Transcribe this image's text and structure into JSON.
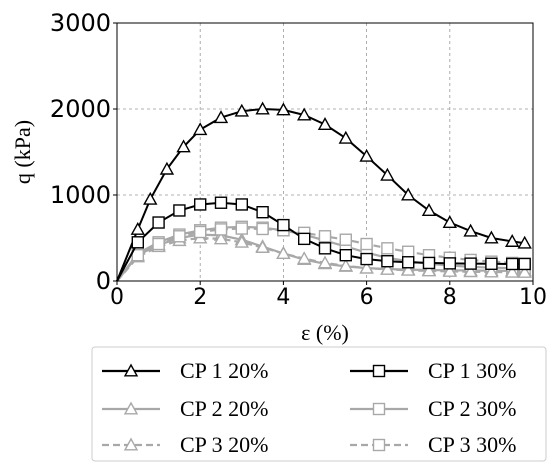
{
  "chart_data": {
    "type": "line",
    "xlabel": "ε (%)",
    "ylabel": "q (kPa)",
    "xlim": [
      0,
      10
    ],
    "ylim": [
      0,
      3000
    ],
    "xticks": [
      "0",
      "2",
      "4",
      "6",
      "8",
      "10"
    ],
    "yticks": [
      "0",
      "1000",
      "2000",
      "3000"
    ],
    "xtick_values": [
      0,
      2,
      4,
      6,
      8,
      10
    ],
    "ytick_values": [
      0,
      1000,
      2000,
      3000
    ],
    "grid": true,
    "legend_position": "bottom",
    "series": [
      {
        "name": "CP 1 20%",
        "color": "#000000",
        "marker": "triangle",
        "dash": "solid",
        "x": [
          0,
          0.5,
          0.8,
          1.2,
          1.6,
          2,
          2.5,
          3,
          3.5,
          4,
          4.5,
          5,
          5.5,
          6,
          6.5,
          7,
          7.5,
          8,
          8.5,
          9,
          9.5,
          9.8
        ],
        "y": [
          0,
          600,
          950,
          1300,
          1560,
          1760,
          1900,
          1975,
          2000,
          1990,
          1930,
          1820,
          1660,
          1450,
          1230,
          1000,
          820,
          680,
          580,
          500,
          460,
          440
        ]
      },
      {
        "name": "CP 1 30%",
        "color": "#000000",
        "marker": "square",
        "dash": "solid",
        "x": [
          0,
          0.5,
          1,
          1.5,
          2,
          2.5,
          3,
          3.5,
          4,
          4.5,
          5,
          5.5,
          6,
          6.5,
          7,
          7.5,
          8,
          8.5,
          9,
          9.5,
          9.8
        ],
        "y": [
          0,
          450,
          680,
          820,
          890,
          910,
          890,
          800,
          650,
          490,
          380,
          300,
          255,
          230,
          218,
          210,
          205,
          202,
          200,
          198,
          198
        ]
      },
      {
        "name": "CP 2 20%",
        "color": "#a8a8a8",
        "marker": "triangle",
        "dash": "solid",
        "x": [
          0,
          0.5,
          1,
          1.5,
          2,
          2.5,
          3,
          3.5,
          4,
          4.5,
          5,
          5.5,
          6,
          6.5,
          7,
          7.5,
          8,
          8.5,
          9,
          9.5,
          9.8
        ],
        "y": [
          0,
          300,
          420,
          500,
          540,
          530,
          480,
          400,
          320,
          250,
          200,
          170,
          150,
          140,
          132,
          128,
          125,
          122,
          120,
          118,
          118
        ]
      },
      {
        "name": "CP 2 30%",
        "color": "#a8a8a8",
        "marker": "square",
        "dash": "solid",
        "x": [
          0,
          0.5,
          1,
          1.5,
          2,
          2.5,
          3,
          3.5,
          4,
          4.5,
          5,
          5.5,
          6,
          6.5,
          7,
          7.5,
          8,
          8.5,
          9,
          9.5,
          9.8
        ],
        "y": [
          0,
          320,
          450,
          540,
          590,
          620,
          630,
          620,
          590,
          540,
          470,
          400,
          330,
          270,
          230,
          200,
          180,
          165,
          155,
          150,
          148
        ]
      },
      {
        "name": "CP 3 20%",
        "color": "#a8a8a8",
        "marker": "triangle",
        "dash": "dashed",
        "x": [
          0,
          0.5,
          1,
          1.5,
          2,
          2.5,
          3,
          3.5,
          4,
          4.5,
          5,
          5.5,
          6,
          6.5,
          7,
          7.5,
          8,
          8.5,
          9,
          9.5,
          9.8
        ],
        "y": [
          0,
          280,
          400,
          470,
          500,
          490,
          450,
          390,
          320,
          260,
          210,
          175,
          150,
          135,
          125,
          118,
          112,
          108,
          105,
          102,
          100
        ]
      },
      {
        "name": "CP 3 30%",
        "color": "#a8a8a8",
        "marker": "square",
        "dash": "dashed",
        "x": [
          0,
          0.5,
          1,
          1.5,
          2,
          2.5,
          3,
          3.5,
          4,
          4.5,
          5,
          5.5,
          6,
          6.5,
          7,
          7.5,
          8,
          8.5,
          9,
          9.5,
          9.8
        ],
        "y": [
          0,
          300,
          430,
          520,
          570,
          600,
          610,
          605,
          590,
          560,
          520,
          480,
          430,
          380,
          340,
          300,
          270,
          245,
          225,
          210,
          200
        ]
      }
    ]
  }
}
